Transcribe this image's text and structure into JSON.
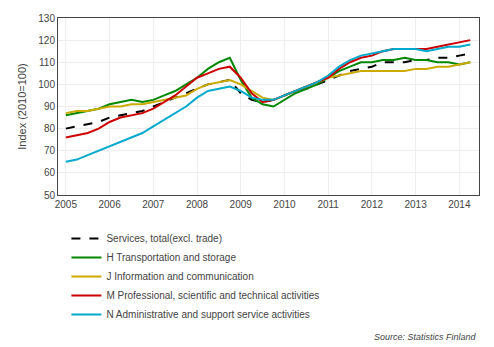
{
  "chart_data": {
    "type": "line",
    "ylabel": "Index (2010=100)",
    "annotations": [
      "Source: Statistics Finland"
    ],
    "xlim": [
      2004.82,
      2014.45
    ],
    "ylim": [
      50,
      130
    ],
    "xticks": [
      2005,
      2006,
      2007,
      2008,
      2009,
      2010,
      2011,
      2012,
      2013,
      2014
    ],
    "yticks": [
      50,
      60,
      70,
      80,
      90,
      100,
      110,
      120,
      130
    ],
    "grid": true,
    "legend": "bottom",
    "x": [
      2005.0,
      2005.25,
      2005.5,
      2005.75,
      2006.0,
      2006.25,
      2006.5,
      2006.75,
      2007.0,
      2007.25,
      2007.5,
      2007.75,
      2008.0,
      2008.25,
      2008.5,
      2008.75,
      2009.0,
      2009.25,
      2009.5,
      2009.75,
      2010.0,
      2010.25,
      2010.5,
      2010.75,
      2011.0,
      2011.25,
      2011.5,
      2011.75,
      2012.0,
      2012.25,
      2012.5,
      2012.75,
      2013.0,
      2013.25,
      2013.5,
      2013.75,
      2014.0,
      2014.25
    ],
    "series": [
      {
        "name": "Services, total(excl. trade)",
        "color": "#000000",
        "line_style": "dashed",
        "values": [
          80,
          81,
          82,
          83,
          85,
          86,
          87,
          88,
          90,
          92,
          94,
          96,
          98,
          100,
          101,
          102,
          96,
          93,
          92,
          93,
          95,
          97,
          98,
          100,
          102,
          104,
          106,
          107,
          108,
          110,
          110,
          110,
          111,
          111,
          112,
          112,
          113,
          114
        ]
      },
      {
        "name": "H Transportation and storage",
        "color": "#008800",
        "line_style": "solid",
        "values": [
          86,
          87,
          88,
          89,
          91,
          92,
          93,
          92,
          93,
          95,
          97,
          100,
          103,
          107,
          110,
          112,
          102,
          94,
          91,
          90,
          93,
          96,
          98,
          100,
          103,
          106,
          108,
          110,
          110,
          111,
          111,
          112,
          111,
          111,
          110,
          110,
          109,
          110
        ]
      },
      {
        "name": "J Information and communication",
        "color": "#ccaa00",
        "line_style": "solid",
        "values": [
          87,
          88,
          88,
          89,
          90,
          90,
          91,
          91,
          92,
          93,
          94,
          95,
          98,
          100,
          101,
          102,
          100,
          97,
          94,
          93,
          95,
          97,
          99,
          101,
          103,
          104,
          105,
          106,
          106,
          106,
          106,
          106,
          107,
          107,
          108,
          108,
          109,
          110
        ]
      },
      {
        "name": "M Professional, scientific and technical activities",
        "color": "#cc0000",
        "line_style": "solid",
        "values": [
          76,
          77,
          78,
          80,
          83,
          85,
          86,
          87,
          89,
          92,
          95,
          99,
          103,
          105,
          107,
          108,
          103,
          96,
          92,
          93,
          95,
          97,
          99,
          101,
          103,
          107,
          110,
          112,
          113,
          115,
          116,
          116,
          116,
          116,
          117,
          118,
          119,
          120
        ]
      },
      {
        "name": "N Administrative and support service activities",
        "color": "#00aacc",
        "line_style": "solid",
        "values": [
          65,
          66,
          68,
          70,
          72,
          74,
          76,
          78,
          81,
          84,
          87,
          90,
          94,
          97,
          98,
          99,
          97,
          94,
          93,
          93,
          95,
          97,
          99,
          101,
          104,
          108,
          111,
          113,
          114,
          115,
          116,
          116,
          116,
          115,
          116,
          117,
          117,
          118
        ]
      }
    ]
  }
}
